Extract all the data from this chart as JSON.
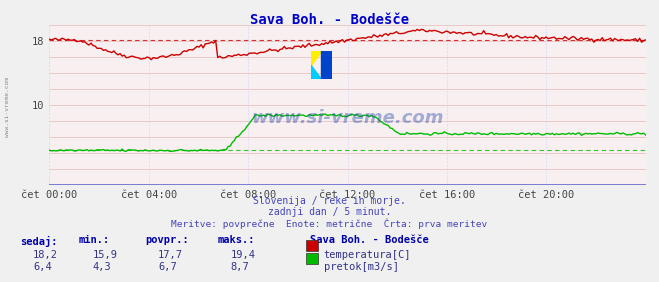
{
  "title": "Sava Boh. - Bodešče",
  "bg_color": "#f0f0f0",
  "plot_bg_color": "#f8f0f0",
  "grid_color_h": "#e8b8b8",
  "grid_color_v": "#d8d8f8",
  "x_min": 0,
  "x_max": 288,
  "x_ticks": [
    0,
    48,
    96,
    144,
    192,
    240
  ],
  "x_labels": [
    "čet 00:00",
    "čet 04:00",
    "čet 08:00",
    "čet 12:00",
    "čet 16:00",
    "čet 20:00"
  ],
  "y_min": 0,
  "y_max": 20,
  "y_ticks": [
    10,
    18
  ],
  "y_tick_labels": [
    "10",
    "18"
  ],
  "temp_color": "#cc0000",
  "flow_color": "#00bb00",
  "dashed_temp_value": 18.2,
  "dashed_flow_value": 4.3,
  "axis_line_color": "#6666cc",
  "watermark": "www.si-vreme.com",
  "watermark_color": "#2244aa",
  "watermark_alpha": 0.4,
  "logo_yellow": "#ffee00",
  "logo_cyan": "#00ccff",
  "logo_blue": "#0044cc",
  "subtitle1": "Slovenija / reke in morje.",
  "subtitle2": "zadnji dan / 5 minut.",
  "subtitle3": "Meritve: povprečne  Enote: metrične  Črta: prva meritev",
  "subtitle_color": "#4444bb",
  "legend_title": "Sava Boh. - Bodešče",
  "legend_items": [
    {
      "label": "temperatura[C]",
      "color": "#cc0000"
    },
    {
      "label": "pretok[m3/s]",
      "color": "#00bb00"
    }
  ],
  "stats_headers": [
    "sedaj:",
    "min.:",
    "povpr.:",
    "maks.:"
  ],
  "stats_temp": [
    "18,2",
    "15,9",
    "17,7",
    "19,4"
  ],
  "stats_flow": [
    "6,4",
    "4,3",
    "6,7",
    "8,7"
  ],
  "stats_header_color": "#0000aa",
  "stats_value_color": "#333388",
  "sidebar_text": "www.si-vreme.com",
  "sidebar_color": "#888888",
  "title_color": "#0000cc"
}
